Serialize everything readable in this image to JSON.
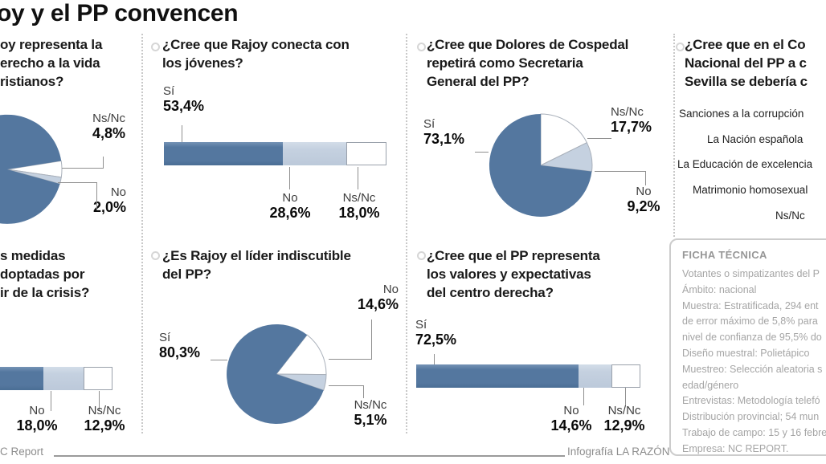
{
  "title": "oy y el PP convencen",
  "palette": {
    "dark": "#54779f",
    "light": "#c5d1e0",
    "white": "#ffffff",
    "slice_stroke": "#a9b0ba"
  },
  "panels": {
    "q1": {
      "lines": [
        "oy representa la",
        "erecho a la vida",
        "ristianos?"
      ],
      "labels": {
        "nsnc": {
          "name": "Ns/Nc",
          "value": "4,8%"
        },
        "no": {
          "name": "No",
          "value": "2,0%"
        }
      }
    },
    "q2": {
      "lines": [
        "¿Cree que Rajoy conecta con",
        "los jóvenes?"
      ],
      "labels": {
        "si": {
          "name": "Sí",
          "value": "53,4%"
        },
        "no": {
          "name": "No",
          "value": "28,6%"
        },
        "nsnc": {
          "name": "Ns/Nc",
          "value": "18,0%"
        }
      }
    },
    "q3": {
      "lines": [
        "¿Cree que Dolores de Cospedal",
        "repetirá como Secretaria",
        "General del PP?"
      ],
      "labels": {
        "si": {
          "name": "Sí",
          "value": "73,1%"
        },
        "nsnc": {
          "name": "Ns/Nc",
          "value": "17,7%"
        },
        "no": {
          "name": "No",
          "value": "9,2%"
        }
      }
    },
    "q4": {
      "lines": [
        "¿Cree que en el Co",
        "Nacional del PP a c",
        "Sevilla se debería c"
      ],
      "items": [
        "Sanciones a la corrupción",
        "La Nación española",
        "La Educación de excelencia",
        "Matrimonio homosexual",
        "Ns/Nc"
      ]
    },
    "q5": {
      "lines": [
        "s medidas",
        "doptadas por",
        "ir de la crisis?"
      ],
      "labels": {
        "no": {
          "name": "No",
          "value": "18,0%"
        },
        "nsnc": {
          "name": "Ns/Nc",
          "value": "12,9%"
        }
      }
    },
    "q6": {
      "lines": [
        "¿Es Rajoy el líder indiscutible",
        "del PP?"
      ],
      "labels": {
        "si": {
          "name": "Sí",
          "value": "80,3%"
        },
        "no": {
          "name": "No",
          "value": "14,6%"
        },
        "nsnc": {
          "name": "Ns/Nc",
          "value": "5,1%"
        }
      }
    },
    "q7": {
      "lines": [
        "¿Cree que el PP representa",
        "los valores y expectativas",
        "del centro derecha?"
      ],
      "labels": {
        "si": {
          "name": "Sí",
          "value": "72,5%"
        },
        "no": {
          "name": "No",
          "value": "14,6%"
        },
        "nsnc": {
          "name": "Ns/Nc",
          "value": "12,9%"
        }
      }
    }
  },
  "ficha": {
    "header": "FICHA TÉCNICA",
    "lines": [
      "Votantes o simpatizantes del P",
      "Ámbito: nacional",
      "Muestra: Estratificada, 294 ent",
      "de error máximo de 5,8% para",
      "nivel de confianza de 95,5% do",
      "Diseño muestral: Polietápico",
      "Muestreo: Selección aleatoria s",
      "edad/género",
      "Entrevistas: Metodología telefó",
      "Distribución provincial; 54 mun",
      "Trabajo de campo: 15 y 16 febre",
      "Empresa: NC REPORT."
    ]
  },
  "footer": {
    "source": "C Report",
    "credit": "Infografía LA RAZÓN"
  },
  "chart_data": [
    {
      "id": "q1",
      "type": "pie",
      "question_visible": "oy representa la / erecho a la vida / ristianos? (cut off at left edge)",
      "start_angle": 81,
      "slices": [
        {
          "label": "Ns/Nc",
          "value": 4.8,
          "color": "white"
        },
        {
          "label": "No",
          "value": 2.0,
          "color": "light"
        },
        {
          "label": "",
          "value": null,
          "color": "dark"
        }
      ]
    },
    {
      "id": "q2",
      "type": "bar",
      "question": "¿Cree que Rajoy conecta con los jóvenes?",
      "categories": [
        "Sí",
        "No",
        "Ns/Nc"
      ],
      "values": [
        53.4,
        28.6,
        18.0
      ],
      "colors": [
        "dark",
        "light",
        "white"
      ]
    },
    {
      "id": "q3",
      "type": "pie",
      "question": "¿Cree que Dolores de Cospedal repetirá como Secretaria General del PP?",
      "start_angle": 0,
      "slices": [
        {
          "label": "Ns/Nc",
          "value": 17.7,
          "color": "white"
        },
        {
          "label": "No",
          "value": 9.2,
          "color": "light"
        },
        {
          "label": "Sí",
          "value": 73.1,
          "color": "dark"
        }
      ]
    },
    {
      "id": "q5",
      "type": "bar",
      "question_visible": "s medidas / doptadas por / ir de la crisis? (cut off at left edge)",
      "categories": [
        "",
        "No",
        "Ns/Nc"
      ],
      "values": [
        null,
        18.0,
        12.9
      ],
      "colors": [
        "dark",
        "light",
        "white"
      ]
    },
    {
      "id": "q6",
      "type": "pie",
      "question": "¿Es Rajoy el líder indiscutible del PP?",
      "start_angle": 38,
      "slices": [
        {
          "label": "No",
          "value": 14.6,
          "color": "white"
        },
        {
          "label": "Ns/Nc",
          "value": 5.1,
          "color": "light"
        },
        {
          "label": "Sí",
          "value": 80.3,
          "color": "dark"
        }
      ]
    },
    {
      "id": "q7",
      "type": "bar",
      "question": "¿Cree que el PP representa los valores y expectativas del centro derecha?",
      "categories": [
        "Sí",
        "No",
        "Ns/Nc"
      ],
      "values": [
        72.5,
        14.6,
        12.9
      ],
      "colors": [
        "dark",
        "light",
        "white"
      ]
    },
    {
      "id": "q4",
      "type": "list",
      "question_visible": "¿Cree que en el Co / Nacional del PP a c / Sevilla se debería c (cut off at right edge)",
      "options": [
        "Sanciones a la corrupción",
        "La Nación española",
        "La Educación de excelencia",
        "Matrimonio homosexual",
        "Ns/Nc"
      ]
    }
  ]
}
